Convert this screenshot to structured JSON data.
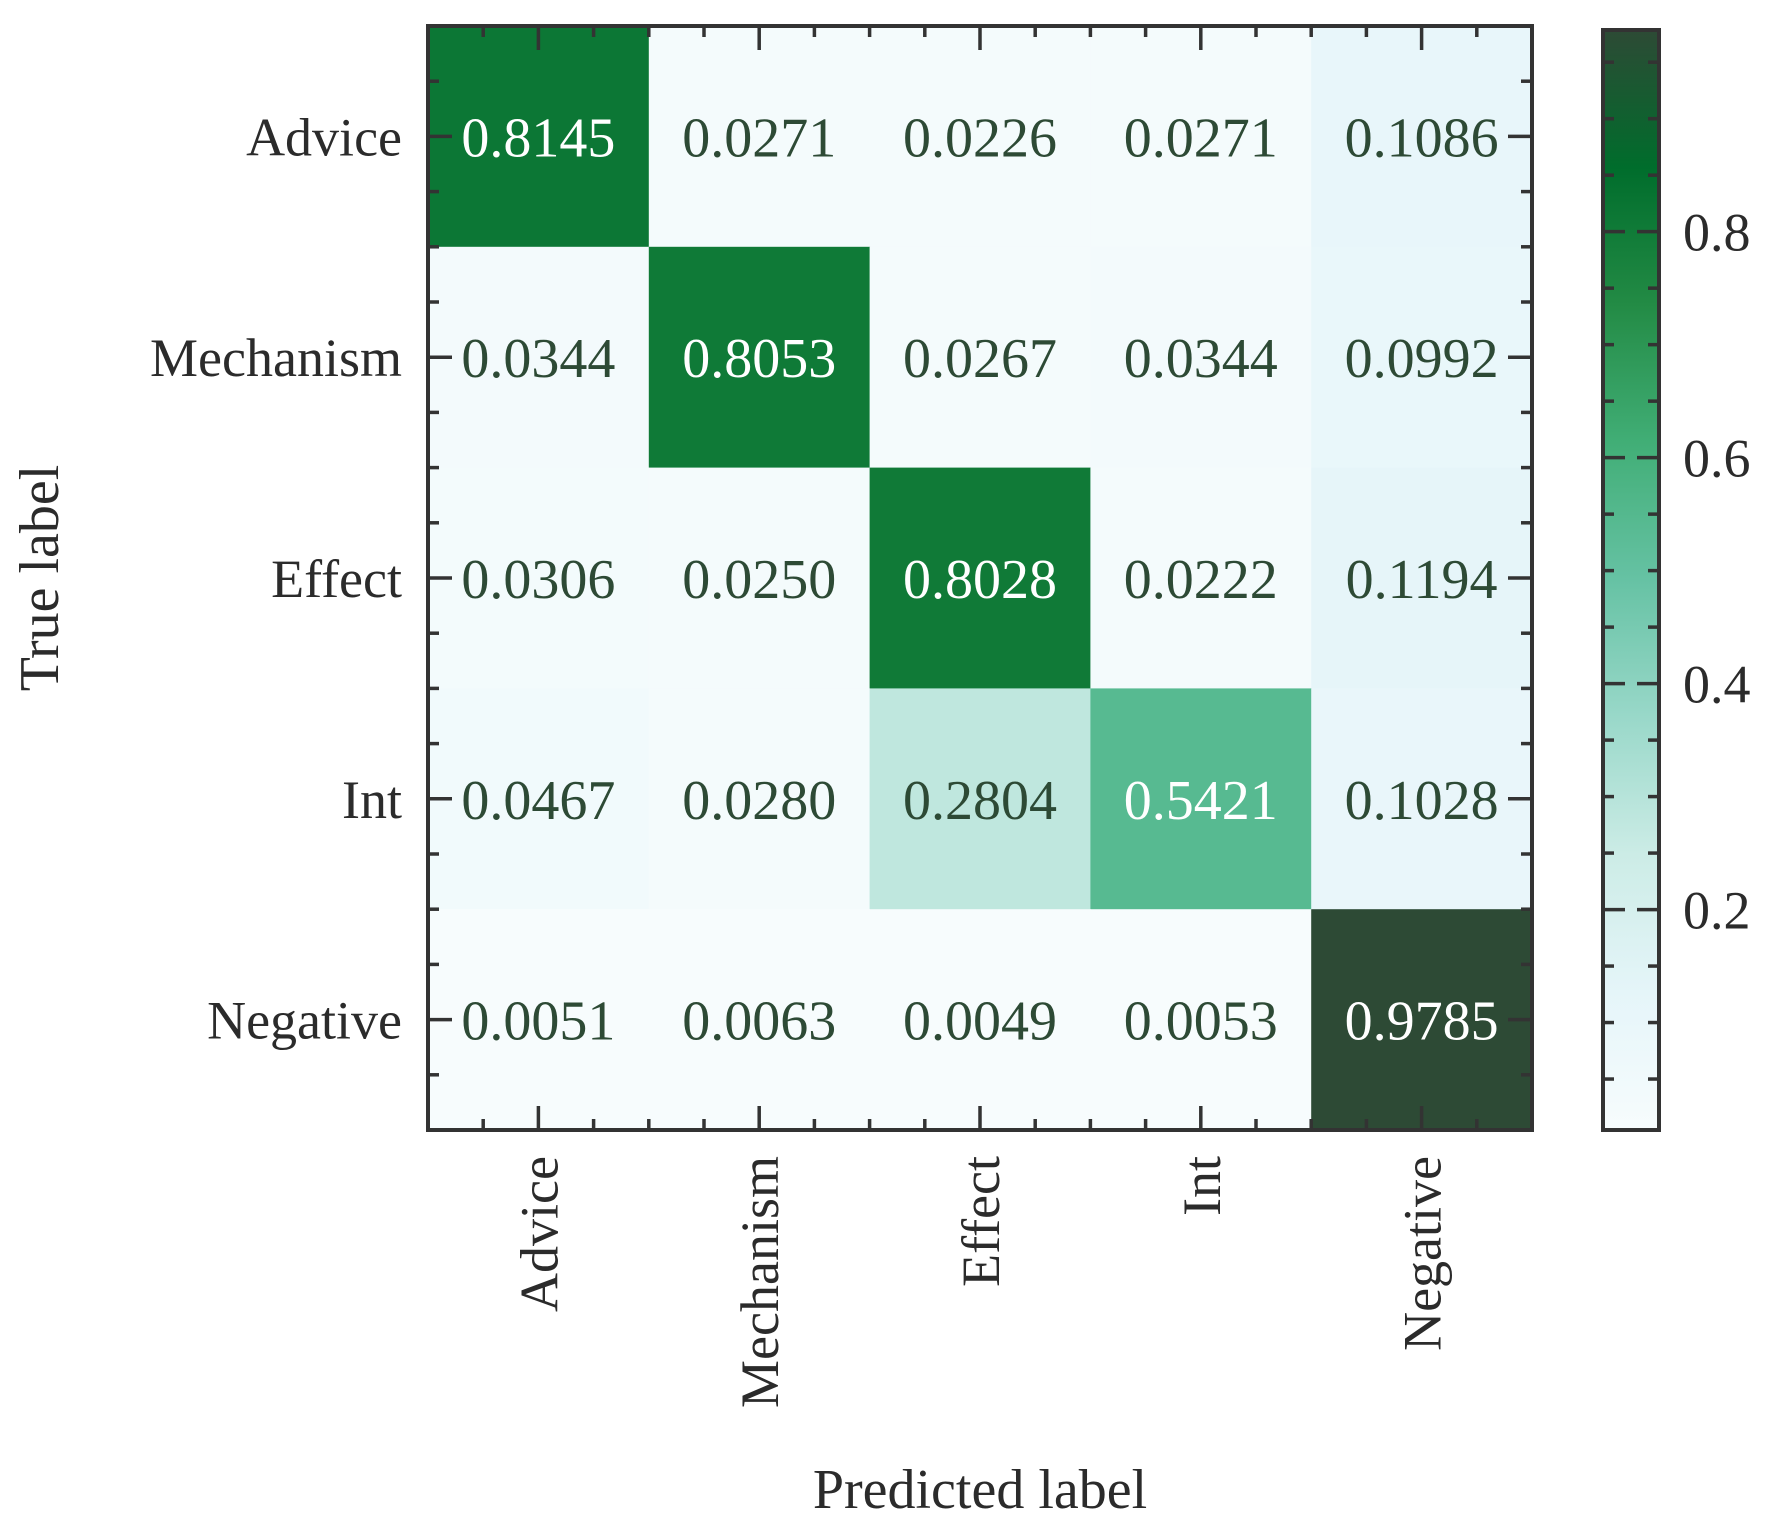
{
  "chart_data": {
    "type": "heatmap",
    "xlabel": "Predicted label",
    "ylabel": "True label",
    "x_categories": [
      "Advice",
      "Mechanism",
      "Effect",
      "Int",
      "Negative"
    ],
    "y_categories": [
      "Advice",
      "Mechanism",
      "Effect",
      "Int",
      "Negative"
    ],
    "values": [
      [
        0.8145,
        0.0271,
        0.0226,
        0.0271,
        0.1086
      ],
      [
        0.0344,
        0.8053,
        0.0267,
        0.0344,
        0.0992
      ],
      [
        0.0306,
        0.025,
        0.8028,
        0.0222,
        0.1194
      ],
      [
        0.0467,
        0.028,
        0.2804,
        0.5421,
        0.1028
      ],
      [
        0.0051,
        0.0063,
        0.0049,
        0.0053,
        0.9785
      ]
    ],
    "value_labels": [
      [
        "0.8145",
        "0.0271",
        "0.0226",
        "0.0271",
        "0.1086"
      ],
      [
        "0.0344",
        "0.8053",
        "0.0267",
        "0.0344",
        "0.0992"
      ],
      [
        "0.0306",
        "0.0250",
        "0.8028",
        "0.0222",
        "0.1194"
      ],
      [
        "0.0467",
        "0.0280",
        "0.2804",
        "0.5421",
        "0.1028"
      ],
      [
        "0.0051",
        "0.0063",
        "0.0049",
        "0.0053",
        "0.9785"
      ]
    ],
    "colorbar": {
      "range": [
        0.0049,
        0.9785
      ],
      "ticks": [
        0.2,
        0.4,
        0.6,
        0.8
      ],
      "tick_labels": [
        "0.2",
        "0.4",
        "0.6",
        "0.8"
      ],
      "colormap": "BuGn",
      "colors": [
        "#f7fcfd",
        "#e5f5f9",
        "#ccece6",
        "#99d8c9",
        "#66c2a4",
        "#41ae76",
        "#238b45",
        "#006d2c",
        "#2d4a35"
      ]
    },
    "text_colors": {
      "dark": "#2d4a35",
      "light": "#ffffff"
    }
  }
}
